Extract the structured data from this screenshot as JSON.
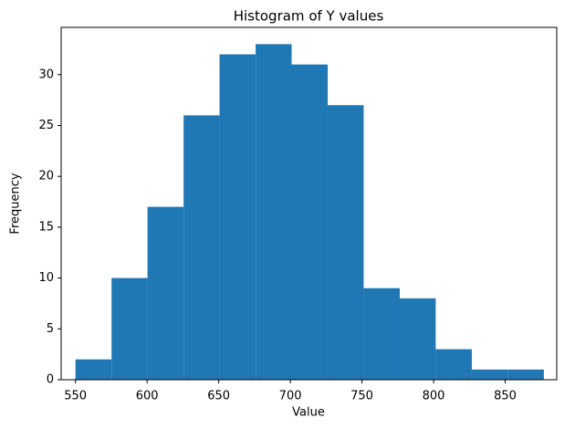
{
  "chart_data": {
    "type": "histogram",
    "title": "Histogram of Y values",
    "x_label": "Value",
    "y_label": "Frequency",
    "bins": [
      550,
      575.2,
      600.3,
      625.5,
      650.6,
      675.8,
      700.9,
      726.1,
      751.2,
      776.4,
      801.5,
      826.7,
      851.8,
      877
    ],
    "values": [
      2,
      10,
      17,
      26,
      32,
      33,
      31,
      27,
      9,
      8,
      3,
      1,
      1
    ],
    "color": "#1f77b4",
    "xlim": [
      540,
      886
    ],
    "xticks": [
      550,
      600,
      650,
      700,
      750,
      800,
      850
    ],
    "ylim": [
      0,
      34.65
    ],
    "yticks": [
      0,
      5,
      10,
      15,
      20,
      25,
      30
    ],
    "grid": false
  }
}
